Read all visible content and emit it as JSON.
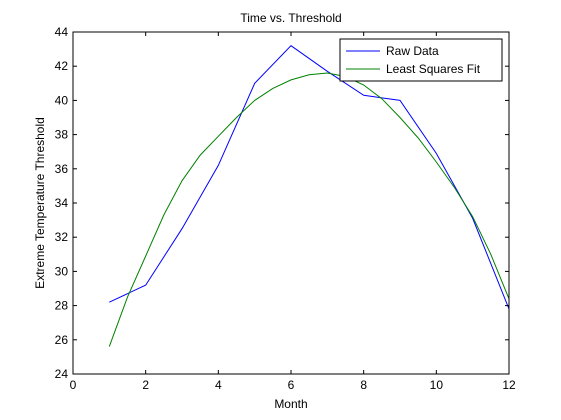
{
  "chart_data": {
    "type": "line",
    "title": "Time vs. Threshold",
    "xlabel": "Month",
    "ylabel": "Extreme Temperature Threshold",
    "xlim": [
      0,
      12
    ],
    "ylim": [
      24,
      44
    ],
    "xticks": [
      0,
      2,
      4,
      6,
      8,
      10,
      12
    ],
    "yticks": [
      24,
      26,
      28,
      30,
      32,
      34,
      36,
      38,
      40,
      42,
      44
    ],
    "grid": false,
    "legend_position": "top-right",
    "series": [
      {
        "name": "Raw Data",
        "color": "#0000ff",
        "x": [
          1,
          2,
          3,
          4,
          5,
          6,
          7,
          8,
          9,
          10,
          11,
          12
        ],
        "y": [
          28.2,
          29.2,
          32.5,
          36.2,
          41.0,
          43.2,
          41.7,
          40.3,
          40.0,
          36.9,
          33.1,
          27.8
        ]
      },
      {
        "name": "Least Squares Fit",
        "color": "#008000",
        "x": [
          1,
          1.5,
          2,
          2.5,
          3,
          3.5,
          4,
          4.5,
          5,
          5.5,
          6,
          6.5,
          7,
          7.5,
          8,
          8.5,
          9,
          9.5,
          10,
          10.5,
          11,
          11.5,
          12
        ],
        "y": [
          25.6,
          28.5,
          30.9,
          33.3,
          35.3,
          36.8,
          37.9,
          39.0,
          40.0,
          40.7,
          41.2,
          41.5,
          41.6,
          41.4,
          40.9,
          40.1,
          39.0,
          37.8,
          36.4,
          34.9,
          33.2,
          31.0,
          28.4
        ]
      }
    ]
  }
}
